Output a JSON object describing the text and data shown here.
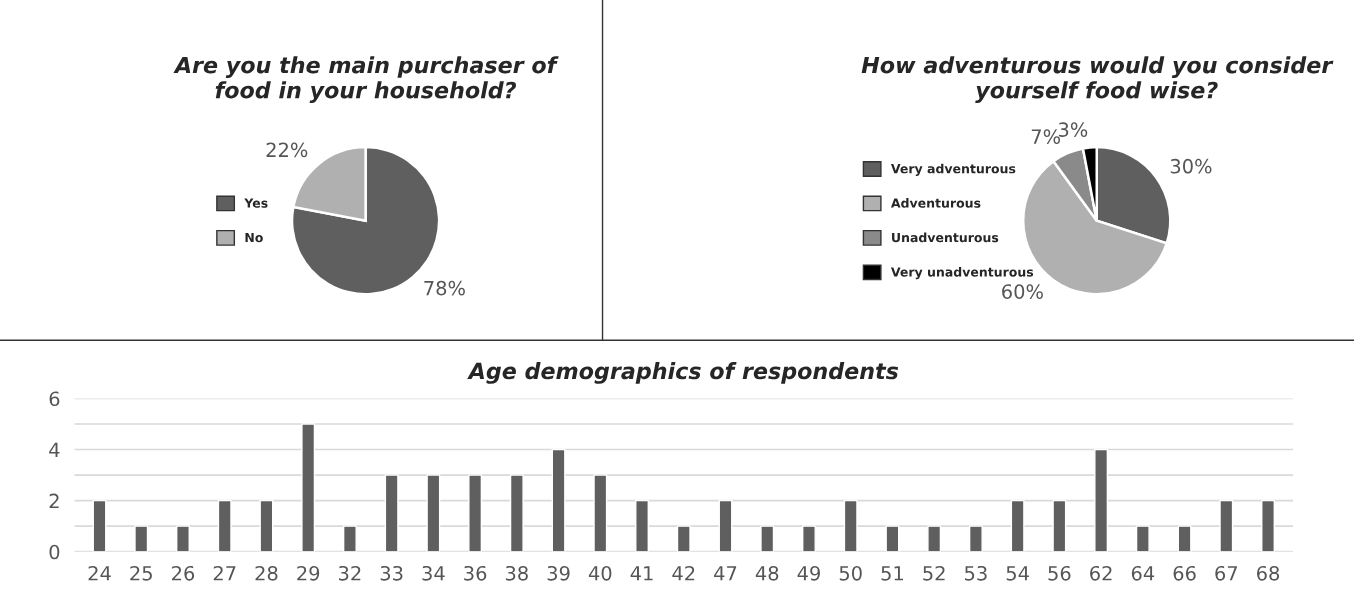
{
  "chart_data": [
    {
      "type": "pie",
      "title": "Are you the main purchaser of\nfood in your household?",
      "categories": [
        "Yes",
        "No"
      ],
      "values": [
        78,
        22
      ],
      "colors": [
        "#5f5f5f",
        "#b0b0b0"
      ],
      "value_labels": [
        "78%",
        "22%"
      ],
      "legend": "left"
    },
    {
      "type": "pie",
      "title": "How adventurous would you consider\nyourself food wise?",
      "categories": [
        "Very adventurous",
        "Adventurous",
        "Unadventurous",
        "Very unadventurous"
      ],
      "values": [
        30,
        60,
        7,
        3
      ],
      "colors": [
        "#5f5f5f",
        "#b0b0b0",
        "#8a8a8a",
        "#000000"
      ],
      "value_labels": [
        "30%",
        "60%",
        "7%",
        "3%"
      ],
      "legend": "left"
    },
    {
      "type": "bar",
      "title": "Age demographics of respondents",
      "categories": [
        "24",
        "25",
        "26",
        "27",
        "28",
        "29",
        "32",
        "33",
        "34",
        "36",
        "38",
        "39",
        "40",
        "41",
        "42",
        "47",
        "48",
        "49",
        "50",
        "51",
        "52",
        "53",
        "54",
        "56",
        "62",
        "64",
        "66",
        "67",
        "68"
      ],
      "values": [
        2,
        1,
        1,
        2,
        2,
        5,
        1,
        3,
        3,
        3,
        3,
        4,
        3,
        2,
        1,
        2,
        1,
        1,
        2,
        1,
        1,
        1,
        2,
        2,
        4,
        1,
        1,
        2,
        2
      ],
      "color": "#5f5f5f",
      "ylim": [
        0,
        6
      ],
      "yticks": [
        0,
        {
          "value": 1,
          "label": null
        },
        2,
        {
          "value": 3,
          "label": null
        },
        4,
        {
          "value": 5,
          "label": null
        },
        6
      ],
      "grid": "y"
    }
  ]
}
